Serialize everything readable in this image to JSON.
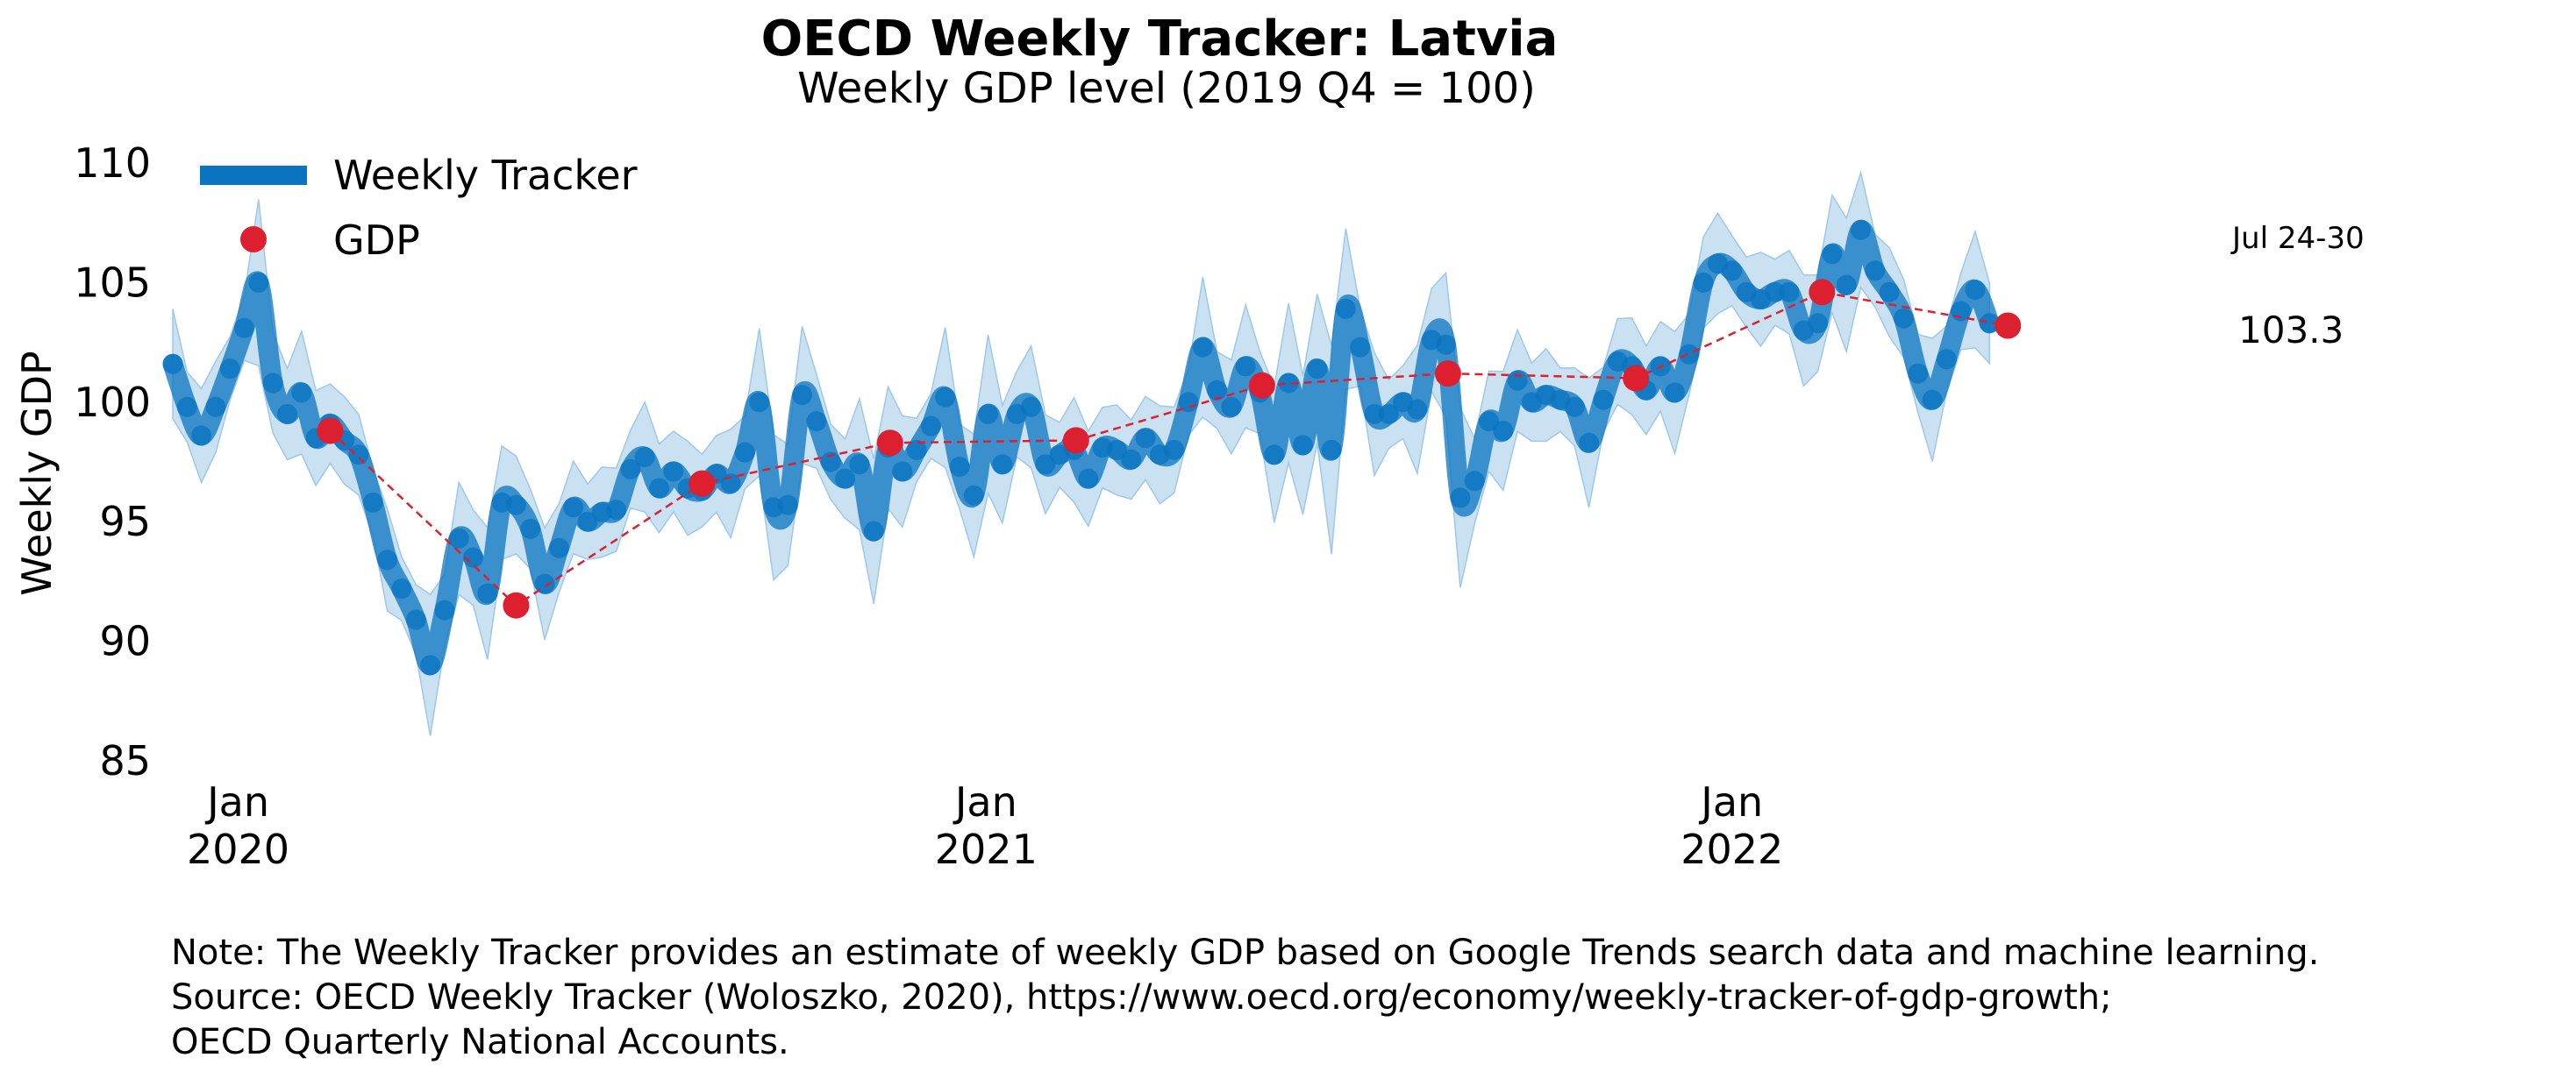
{
  "chart_data": {
    "type": "line",
    "title": "OECD Weekly Tracker: Latvia",
    "subtitle": "Weekly GDP level (2019 Q4 = 100)",
    "ylabel": "Weekly GDP",
    "ylim": [
      85,
      110
    ],
    "yticks": [
      85,
      90,
      95,
      100,
      105,
      110
    ],
    "xlim": [
      "2019-11-27",
      "2022-08-08"
    ],
    "xticks": [
      {
        "date": "2020-01-01",
        "month": "Jan",
        "year": "2020"
      },
      {
        "date": "2021-01-01",
        "month": "Jan",
        "year": "2021"
      },
      {
        "date": "2022-01-01",
        "month": "Jan",
        "year": "2022"
      }
    ],
    "legend": {
      "position": "top-left",
      "items": [
        "Weekly Tracker",
        "GDP"
      ]
    },
    "grid": false,
    "colors": {
      "tracker": "#0a74c0",
      "band": "#c9e1f1",
      "gdp": "#dd2030"
    },
    "series": [
      {
        "name": "Weekly Tracker",
        "start_date": "2019-11-30",
        "interval_days": 7,
        "values": [
          101.6,
          99.8,
          98.6,
          99.8,
          101.4,
          103.1,
          105.0,
          100.8,
          99.5,
          100.4,
          98.5,
          99.1,
          98.4,
          97.8,
          95.8,
          93.4,
          92.2,
          90.9,
          89.0,
          91.3,
          94.3,
          93.5,
          92.0,
          95.8,
          95.7,
          94.7,
          92.4,
          93.9,
          95.6,
          95.0,
          95.4,
          95.5,
          97.2,
          97.7,
          96.4,
          97.1,
          96.4,
          96.3,
          97.0,
          96.6,
          97.9,
          100.0,
          95.6,
          95.7,
          100.3,
          99.2,
          97.5,
          96.8,
          97.4,
          94.6,
          98.1,
          97.1,
          98.0,
          99.0,
          100.2,
          97.3,
          96.1,
          99.5,
          97.4,
          99.5,
          99.8,
          97.4,
          97.8,
          98.0,
          96.8,
          98.1,
          98.0,
          97.6,
          98.5,
          97.8,
          98.0,
          100.0,
          102.3,
          100.5,
          99.8,
          101.5,
          100.4,
          97.8,
          100.8,
          98.2,
          101.4,
          98.0,
          103.9,
          102.3,
          99.5,
          99.5,
          100.0,
          99.7,
          102.6,
          102.4,
          96.0,
          96.7,
          99.2,
          98.8,
          100.9,
          100.0,
          100.3,
          100.1,
          99.8,
          98.3,
          100.1,
          101.7,
          101.5,
          100.5,
          101.5,
          100.4,
          102.0,
          105.0,
          105.8,
          105.5,
          104.6,
          104.3,
          104.6,
          104.6,
          103.0,
          103.3,
          106.2,
          104.9,
          107.2,
          105.5,
          104.6,
          103.5,
          101.2,
          100.1,
          101.8,
          103.8,
          104.7,
          103.3
        ]
      },
      {
        "name": "GDP",
        "points": [
          {
            "date": "2020-02-15",
            "value": 98.8
          },
          {
            "date": "2020-05-16",
            "value": 91.5
          },
          {
            "date": "2020-08-15",
            "value": 96.6
          },
          {
            "date": "2020-11-15",
            "value": 98.3
          },
          {
            "date": "2021-02-14",
            "value": 98.4
          },
          {
            "date": "2021-05-16",
            "value": 100.7
          },
          {
            "date": "2021-08-15",
            "value": 101.2
          },
          {
            "date": "2021-11-15",
            "value": 101.0
          },
          {
            "date": "2022-02-14",
            "value": 104.6
          },
          {
            "date": "2022-05-16",
            "value": 103.2
          }
        ]
      }
    ],
    "annotation": {
      "label": "Jul 24-30",
      "value": "103.3"
    }
  },
  "notes": {
    "line1": "Note: The Weekly Tracker provides an estimate of weekly GDP based on Google Trends search data and machine learning.",
    "line2": "Source: OECD Weekly Tracker (Woloszko, 2020), https://www.oecd.org/economy/weekly-tracker-of-gdp-growth;",
    "line3": "OECD Quarterly National Accounts."
  }
}
